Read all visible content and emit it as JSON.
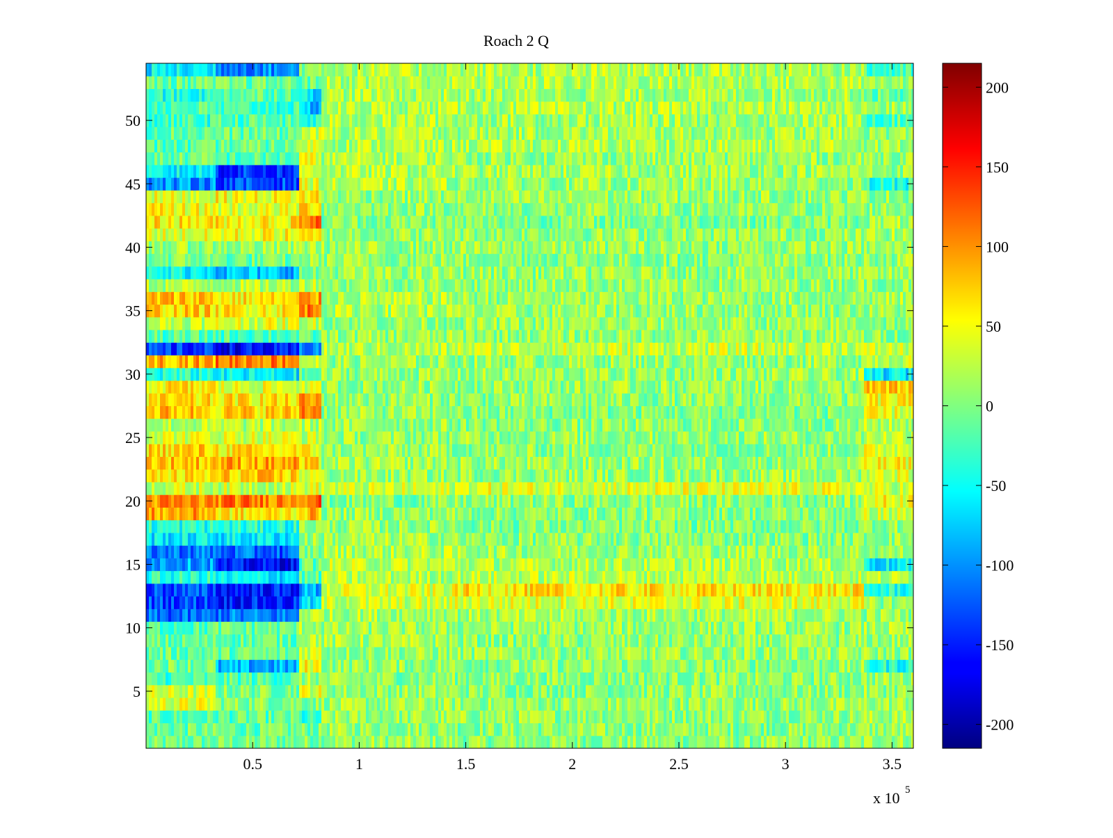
{
  "chart_data": {
    "type": "heatmap",
    "title": "Roach 2 Q",
    "xlabel": "",
    "ylabel": "",
    "x_exponent_label": "x 10",
    "x_exponent_power": "5",
    "xlim": [
      0,
      3.6
    ],
    "ylim": [
      0.5,
      54.5
    ],
    "xticks": [
      {
        "value": 0.5,
        "label": "0.5"
      },
      {
        "value": 1,
        "label": "1"
      },
      {
        "value": 1.5,
        "label": "1.5"
      },
      {
        "value": 2,
        "label": "2"
      },
      {
        "value": 2.5,
        "label": "2.5"
      },
      {
        "value": 3,
        "label": "3"
      },
      {
        "value": 3.5,
        "label": "3.5"
      }
    ],
    "yticks": [
      {
        "value": 5,
        "label": "5"
      },
      {
        "value": 10,
        "label": "10"
      },
      {
        "value": 15,
        "label": "15"
      },
      {
        "value": 20,
        "label": "20"
      },
      {
        "value": 25,
        "label": "25"
      },
      {
        "value": 30,
        "label": "30"
      },
      {
        "value": 35,
        "label": "35"
      },
      {
        "value": 40,
        "label": "40"
      },
      {
        "value": 45,
        "label": "45"
      },
      {
        "value": 50,
        "label": "50"
      }
    ],
    "colorbar": {
      "colormap": "jet",
      "clim": [
        -215,
        215
      ],
      "ticks": [
        {
          "value": 200,
          "label": "200"
        },
        {
          "value": 150,
          "label": "150"
        },
        {
          "value": 100,
          "label": "100"
        },
        {
          "value": 50,
          "label": "50"
        },
        {
          "value": 0,
          "label": "0"
        },
        {
          "value": -50,
          "label": "-50"
        },
        {
          "value": -100,
          "label": "-100"
        },
        {
          "value": -150,
          "label": "-150"
        },
        {
          "value": -200,
          "label": "-200"
        }
      ]
    },
    "rows": 54,
    "segments_x": [
      0,
      0.33,
      0.72,
      0.82,
      1.45,
      3.37,
      3.6
    ],
    "row_segment_means": [
      [
        -10,
        -5,
        0,
        10,
        5,
        15
      ],
      [
        -10,
        -10,
        -5,
        10,
        5,
        10
      ],
      [
        -20,
        -15,
        -40,
        10,
        10,
        15
      ],
      [
        40,
        5,
        5,
        10,
        10,
        15
      ],
      [
        30,
        0,
        40,
        10,
        5,
        10
      ],
      [
        -25,
        -20,
        10,
        5,
        5,
        10
      ],
      [
        0,
        -90,
        50,
        10,
        5,
        -40
      ],
      [
        -10,
        -10,
        40,
        10,
        10,
        10
      ],
      [
        -15,
        -10,
        30,
        15,
        5,
        10
      ],
      [
        -20,
        -10,
        20,
        10,
        10,
        15
      ],
      [
        -120,
        -110,
        25,
        20,
        15,
        10
      ],
      [
        -130,
        -150,
        -70,
        30,
        40,
        10
      ],
      [
        -130,
        -150,
        -90,
        35,
        60,
        -40
      ],
      [
        -40,
        -60,
        -20,
        20,
        25,
        20
      ],
      [
        -90,
        -160,
        -10,
        25,
        20,
        -60
      ],
      [
        -110,
        -120,
        0,
        20,
        15,
        10
      ],
      [
        -60,
        -60,
        10,
        15,
        5,
        10
      ],
      [
        -40,
        -40,
        10,
        10,
        0,
        10
      ],
      [
        90,
        60,
        80,
        10,
        5,
        30
      ],
      [
        100,
        110,
        120,
        0,
        5,
        50
      ],
      [
        30,
        30,
        40,
        30,
        40,
        30
      ],
      [
        60,
        70,
        40,
        10,
        10,
        40
      ],
      [
        80,
        90,
        60,
        15,
        10,
        50
      ],
      [
        70,
        60,
        50,
        10,
        5,
        40
      ],
      [
        40,
        40,
        30,
        10,
        10,
        30
      ],
      [
        20,
        20,
        20,
        10,
        5,
        20
      ],
      [
        80,
        70,
        110,
        10,
        0,
        40
      ],
      [
        60,
        60,
        90,
        10,
        5,
        50
      ],
      [
        60,
        40,
        30,
        10,
        10,
        70
      ],
      [
        -40,
        -60,
        -20,
        10,
        10,
        -60
      ],
      [
        90,
        110,
        30,
        10,
        10,
        30
      ],
      [
        -140,
        -160,
        -100,
        20,
        30,
        30
      ],
      [
        -20,
        -20,
        -20,
        10,
        10,
        5
      ],
      [
        30,
        40,
        30,
        10,
        10,
        5
      ],
      [
        70,
        60,
        110,
        20,
        10,
        10
      ],
      [
        80,
        60,
        90,
        20,
        10,
        15
      ],
      [
        20,
        20,
        30,
        10,
        10,
        10
      ],
      [
        -50,
        -80,
        -10,
        10,
        10,
        10
      ],
      [
        0,
        -10,
        10,
        10,
        5,
        10
      ],
      [
        10,
        10,
        20,
        10,
        10,
        10
      ],
      [
        40,
        50,
        50,
        10,
        10,
        15
      ],
      [
        60,
        60,
        110,
        5,
        0,
        15
      ],
      [
        50,
        40,
        70,
        10,
        5,
        10
      ],
      [
        40,
        50,
        60,
        10,
        10,
        10
      ],
      [
        -100,
        -130,
        40,
        20,
        10,
        -40
      ],
      [
        -60,
        -140,
        40,
        20,
        15,
        10
      ],
      [
        -10,
        -20,
        40,
        20,
        10,
        15
      ],
      [
        -20,
        -10,
        40,
        20,
        20,
        15
      ],
      [
        -10,
        -10,
        30,
        20,
        15,
        10
      ],
      [
        -30,
        -20,
        -40,
        20,
        15,
        -20
      ],
      [
        -20,
        -30,
        -80,
        20,
        20,
        10
      ],
      [
        -40,
        -10,
        -60,
        20,
        15,
        -10
      ],
      [
        -10,
        -10,
        -10,
        20,
        20,
        10
      ],
      [
        -60,
        -100,
        10,
        20,
        20,
        -30
      ]
    ]
  }
}
